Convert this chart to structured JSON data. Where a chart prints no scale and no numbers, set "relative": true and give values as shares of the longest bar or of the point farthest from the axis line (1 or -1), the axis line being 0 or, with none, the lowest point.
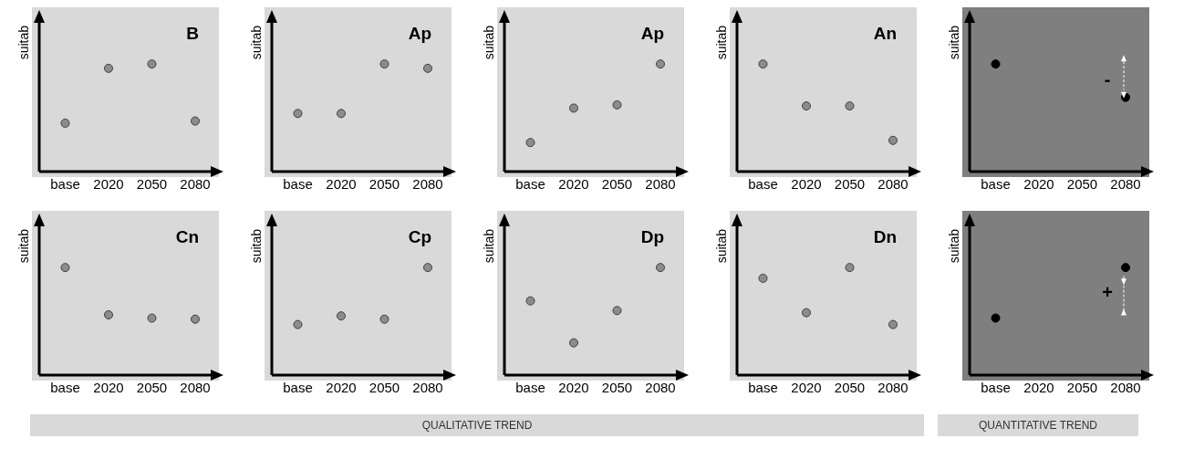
{
  "chart_data": [
    {
      "type": "scatter",
      "title": "B",
      "ylabel": "suitab",
      "categories": [
        "base",
        "2020",
        "2050",
        "2080"
      ],
      "values": [
        0.45,
        0.96,
        1,
        0.47
      ],
      "color": "#8c8c8c",
      "relative": true,
      "marker": "circle",
      "annotations": [
        "QUALITATIVE TREND"
      ]
    },
    {
      "type": "scatter",
      "title": "Ap",
      "ylabel": "suitab",
      "categories": [
        "base",
        "2020",
        "2050",
        "2080"
      ],
      "values": [
        0.54,
        0.54,
        1,
        0.96
      ],
      "color": "#8c8c8c",
      "relative": true,
      "marker": "circle"
    },
    {
      "type": "scatter",
      "title": "Ap",
      "ylabel": "suitab",
      "categories": [
        "base",
        "2020",
        "2050",
        "2080"
      ],
      "values": [
        0.27,
        0.59,
        0.62,
        1
      ],
      "color": "#8c8c8c",
      "relative": true,
      "marker": "circle"
    },
    {
      "type": "scatter",
      "title": "An",
      "ylabel": "suitab",
      "categories": [
        "base",
        "2020",
        "2050",
        "2080"
      ],
      "values": [
        1,
        0.61,
        0.61,
        0.29
      ],
      "color": "#8c8c8c",
      "relative": true,
      "marker": "circle"
    },
    {
      "type": "scatter",
      "ylabel": "suitab",
      "categories": [
        "base",
        "2020",
        "2050",
        "2080"
      ],
      "values": [
        1,
        null,
        null,
        0.69
      ],
      "color": "#000000",
      "relative": true,
      "marker": "circle",
      "annotations": [
        "QUANTITATIVE TREND",
        "-"
      ]
    },
    {
      "type": "scatter",
      "title": "Cn",
      "ylabel": "suitab",
      "categories": [
        "base",
        "2020",
        "2050",
        "2080"
      ],
      "values": [
        1,
        0.56,
        0.53,
        0.52
      ],
      "color": "#8c8c8c",
      "relative": true,
      "marker": "circle"
    },
    {
      "type": "scatter",
      "title": "Cp",
      "ylabel": "suitab",
      "categories": [
        "base",
        "2020",
        "2050",
        "2080"
      ],
      "values": [
        0.47,
        0.55,
        0.52,
        1
      ],
      "color": "#8c8c8c",
      "relative": true,
      "marker": "circle"
    },
    {
      "type": "scatter",
      "title": "Dp",
      "ylabel": "suitab",
      "categories": [
        "base",
        "2020",
        "2050",
        "2080"
      ],
      "values": [
        0.69,
        0.3,
        0.6,
        1
      ],
      "color": "#8c8c8c",
      "relative": true,
      "marker": "circle"
    },
    {
      "type": "scatter",
      "title": "Dn",
      "ylabel": "suitab",
      "categories": [
        "base",
        "2020",
        "2050",
        "2080"
      ],
      "values": [
        0.9,
        0.58,
        1,
        0.47
      ],
      "color": "#8c8c8c",
      "relative": true,
      "marker": "circle"
    },
    {
      "type": "scatter",
      "ylabel": "suitab",
      "categories": [
        "base",
        "2020",
        "2050",
        "2080"
      ],
      "values": [
        0.53,
        null,
        null,
        1
      ],
      "color": "#000000",
      "relative": true,
      "marker": "circle",
      "annotations": [
        "+"
      ]
    }
  ]
}
